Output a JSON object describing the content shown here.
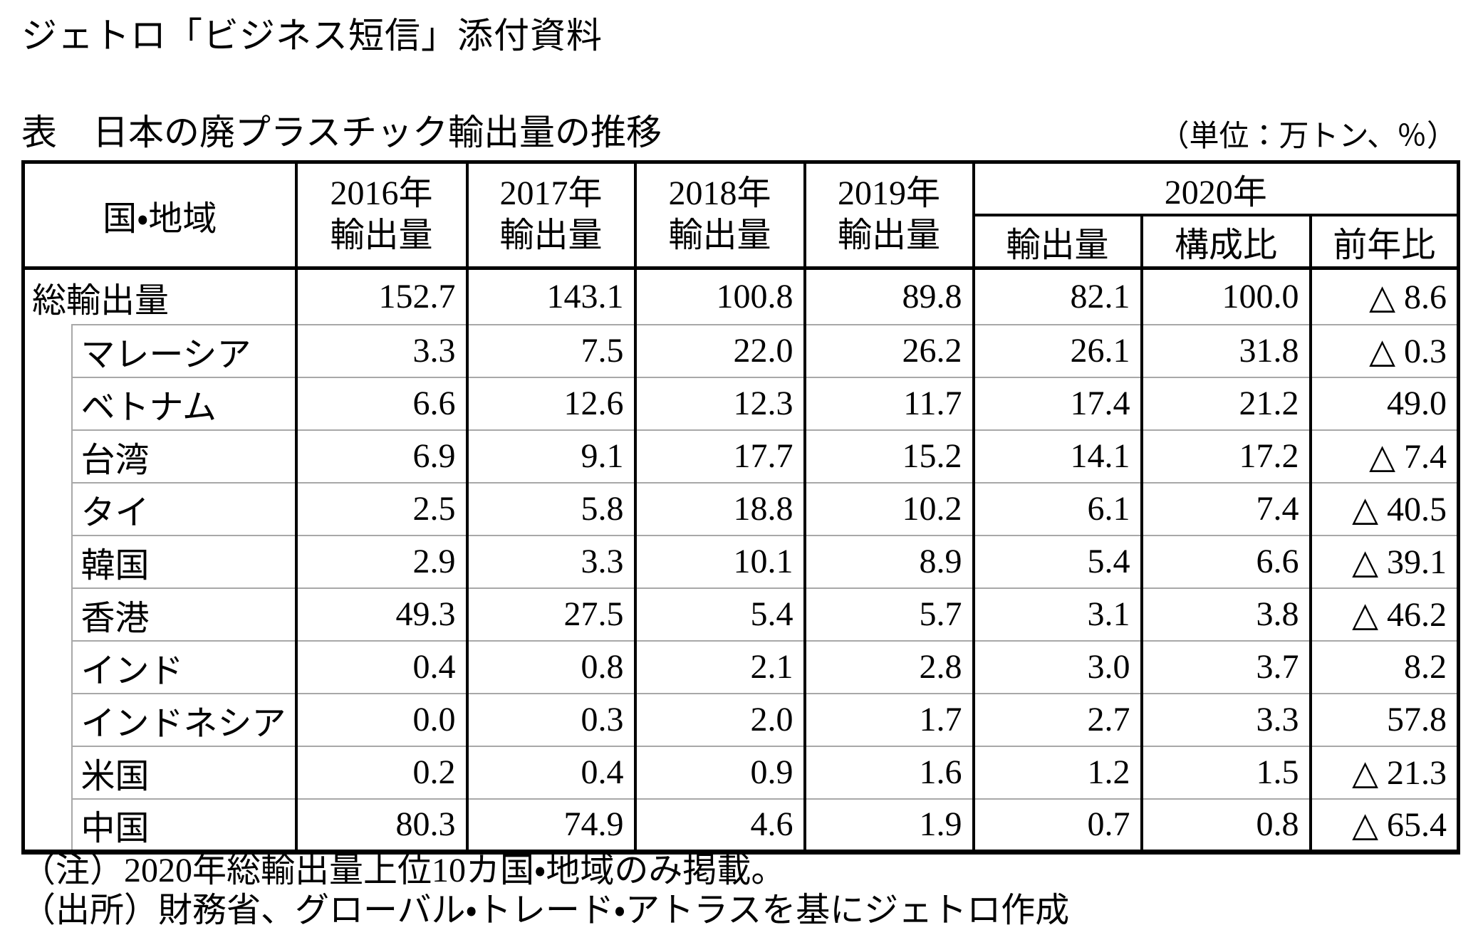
{
  "page": {
    "doc_header": "ジェトロ「ビジネス短信」添付資料",
    "table_title": "表　日本の廃プラスチック輸出量の推移",
    "unit_label": "（単位：万トン、％）",
    "notes": [
      "（注）2020年総輸出量上位10カ国・地域のみ掲載。",
      "（出所）財務省、グローバル・トレード・アトラスを基にジェトロ作成"
    ]
  },
  "table": {
    "header": {
      "country_col": "国・地域",
      "year_cols": [
        {
          "year": "2016年",
          "label": "輸出量"
        },
        {
          "year": "2017年",
          "label": "輸出量"
        },
        {
          "year": "2018年",
          "label": "輸出量"
        },
        {
          "year": "2019年",
          "label": "輸出量"
        }
      ],
      "group_2020": {
        "label": "2020年",
        "sub": [
          "輸出量",
          "構成比",
          "前年比"
        ]
      }
    },
    "rows": [
      {
        "name": "総輸出量",
        "indent": false,
        "values": [
          "152.7",
          "143.1",
          "100.8",
          "89.8",
          "82.1",
          "100.0",
          "△ 8.6"
        ]
      },
      {
        "name": "マレーシア",
        "indent": true,
        "values": [
          "3.3",
          "7.5",
          "22.0",
          "26.2",
          "26.1",
          "31.8",
          "△ 0.3"
        ]
      },
      {
        "name": "ベトナム",
        "indent": true,
        "values": [
          "6.6",
          "12.6",
          "12.3",
          "11.7",
          "17.4",
          "21.2",
          "49.0"
        ]
      },
      {
        "name": "台湾",
        "indent": true,
        "values": [
          "6.9",
          "9.1",
          "17.7",
          "15.2",
          "14.1",
          "17.2",
          "△ 7.4"
        ]
      },
      {
        "name": "タイ",
        "indent": true,
        "values": [
          "2.5",
          "5.8",
          "18.8",
          "10.2",
          "6.1",
          "7.4",
          "△ 40.5"
        ]
      },
      {
        "name": "韓国",
        "indent": true,
        "values": [
          "2.9",
          "3.3",
          "10.1",
          "8.9",
          "5.4",
          "6.6",
          "△ 39.1"
        ]
      },
      {
        "name": "香港",
        "indent": true,
        "values": [
          "49.3",
          "27.5",
          "5.4",
          "5.7",
          "3.1",
          "3.8",
          "△ 46.2"
        ]
      },
      {
        "name": "インド",
        "indent": true,
        "values": [
          "0.4",
          "0.8",
          "2.1",
          "2.8",
          "3.0",
          "3.7",
          "8.2"
        ]
      },
      {
        "name": "インドネシア",
        "indent": true,
        "values": [
          "0.0",
          "0.3",
          "2.0",
          "1.7",
          "2.7",
          "3.3",
          "57.8"
        ]
      },
      {
        "name": "米国",
        "indent": true,
        "values": [
          "0.2",
          "0.4",
          "0.9",
          "1.6",
          "1.2",
          "1.5",
          "△ 21.3"
        ]
      },
      {
        "name": "中国",
        "indent": true,
        "values": [
          "80.3",
          "74.9",
          "4.6",
          "1.9",
          "0.7",
          "0.8",
          "△ 65.4"
        ]
      }
    ]
  }
}
